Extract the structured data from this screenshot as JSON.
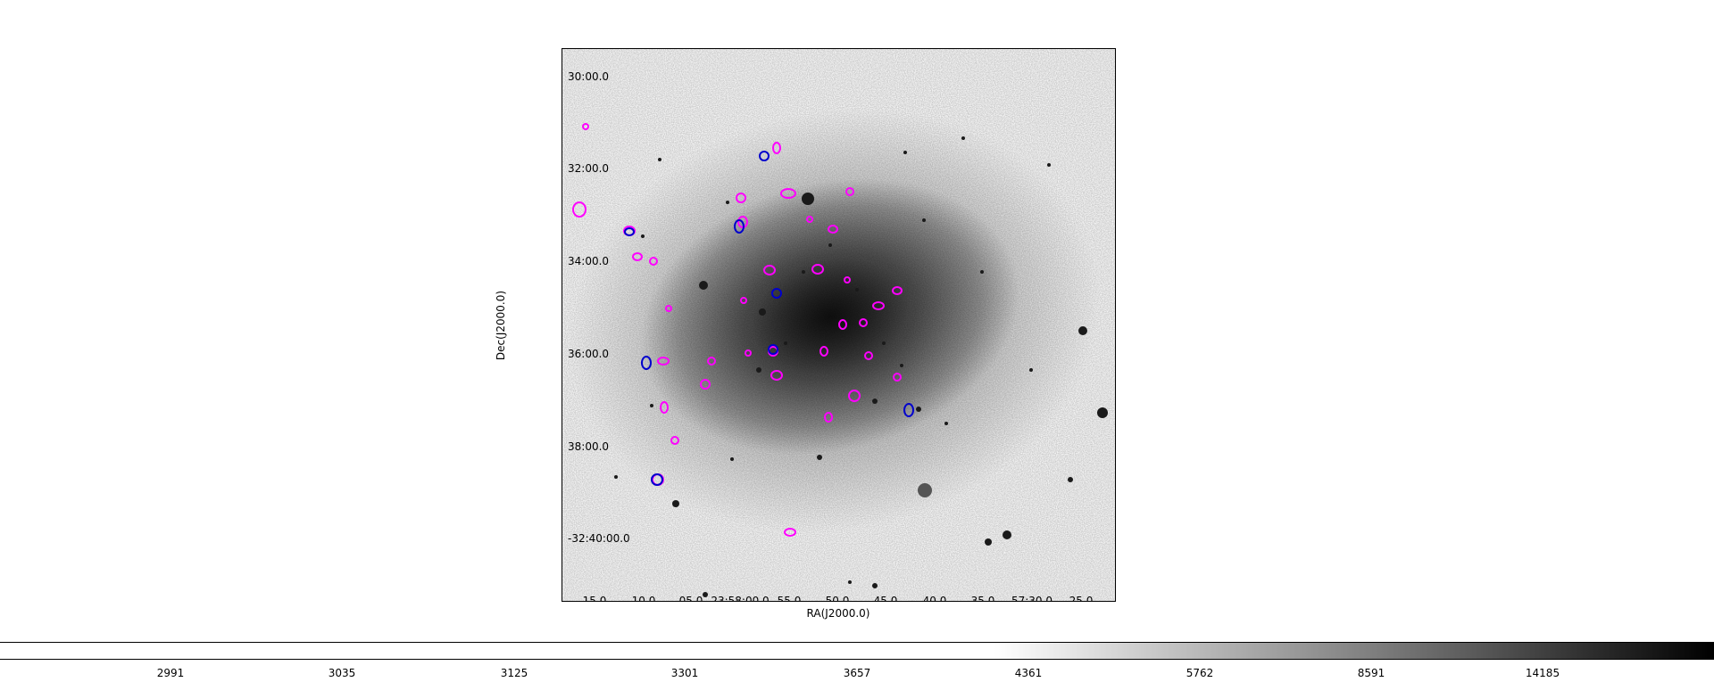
{
  "figure": {
    "x_axis_label": "RA(J2000.0)",
    "y_axis_label": "Dec(J2000.0)",
    "dec_ticks": [
      "30:00.0",
      "32:00.0",
      "34:00.0",
      "36:00.0",
      "38:00.0",
      "-32:40:00.0"
    ],
    "ra_ticks": [
      "15.0",
      "10.0",
      "05.0",
      "23:58:00.0",
      "55.0",
      "50.0",
      "45.0",
      "40.0",
      "35.0",
      "57:30.0",
      "25.0"
    ],
    "colorbar_ticks": [
      "2991",
      "3035",
      "3125",
      "3301",
      "3657",
      "4361",
      "5762",
      "8591",
      "14185"
    ],
    "colormap": "grayscale (white = low, black = high)",
    "contour_colors": {
      "primary": "#ff00ff",
      "secondary": "#0000cc"
    }
  }
}
